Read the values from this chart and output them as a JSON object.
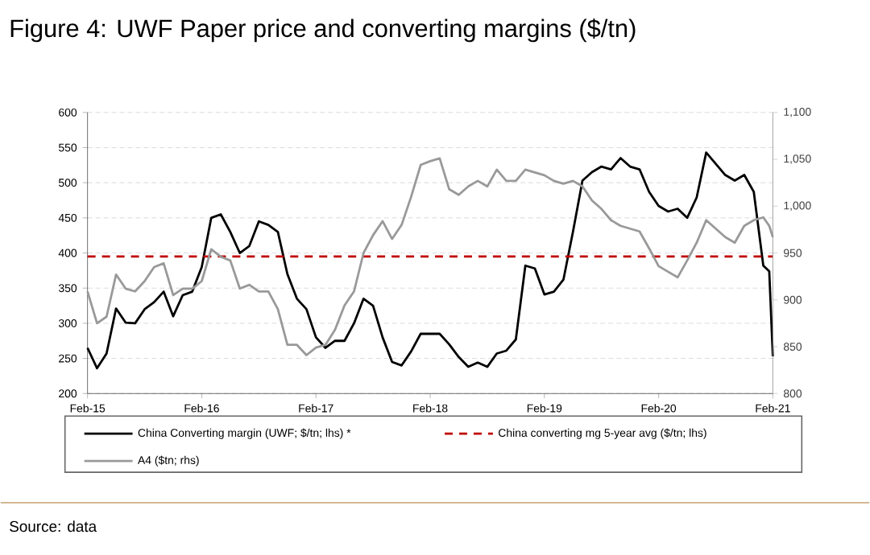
{
  "chart_data": {
    "type": "line",
    "title": "Figure 4: UWF Paper price and converting margins ($/tn)",
    "annotations": [
      "Source: data"
    ],
    "xlim": [
      "2015-02-01",
      "2021-02-01"
    ],
    "xticks": [
      {
        "value": "2015-02-01",
        "label": "Feb-15"
      },
      {
        "value": "2016-02-01",
        "label": "Feb-16"
      },
      {
        "value": "2017-02-01",
        "label": "Feb-17"
      },
      {
        "value": "2018-02-01",
        "label": "Feb-18"
      },
      {
        "value": "2019-02-01",
        "label": "Feb-19"
      },
      {
        "value": "2020-02-01",
        "label": "Feb-20"
      },
      {
        "value": "2021-02-01",
        "label": "Feb-21"
      }
    ],
    "ylim": [
      200,
      600
    ],
    "yticks": [
      200,
      250,
      300,
      350,
      400,
      450,
      500,
      550,
      600
    ],
    "y2lim": [
      800,
      1100
    ],
    "y2ticks": [
      800,
      850,
      900,
      950,
      {
        "value": 1000,
        "label": "1,000"
      },
      {
        "value": 1050,
        "label": "1,050"
      },
      {
        "value": 1100,
        "label": "1,100"
      }
    ],
    "grid": "y",
    "legend": "bottom",
    "ref_lines": [
      {
        "axis": "y",
        "value": 395,
        "label": "China converting mg 5-year avg ($/tn; lhs)",
        "color": "#c00000",
        "line_style": "dashed"
      }
    ],
    "series": [
      {
        "name": "China Converting margin (UWF; $/tn; lhs) *",
        "color": "#000000",
        "axis": "y",
        "x": [
          "2015-02-01",
          "2015-03-01",
          "2015-04-01",
          "2015-05-01",
          "2015-06-01",
          "2015-07-01",
          "2015-08-01",
          "2015-09-01",
          "2015-10-01",
          "2015-11-01",
          "2015-12-01",
          "2016-01-01",
          "2016-02-01",
          "2016-03-01",
          "2016-04-01",
          "2016-05-01",
          "2016-06-01",
          "2016-07-01",
          "2016-08-01",
          "2016-09-01",
          "2016-10-01",
          "2016-11-01",
          "2016-12-01",
          "2017-01-01",
          "2017-02-01",
          "2017-03-01",
          "2017-04-01",
          "2017-05-01",
          "2017-06-01",
          "2017-07-01",
          "2017-08-01",
          "2017-09-01",
          "2017-10-01",
          "2017-11-01",
          "2017-12-01",
          "2018-01-01",
          "2018-02-01",
          "2018-03-01",
          "2018-04-01",
          "2018-05-01",
          "2018-06-01",
          "2018-07-01",
          "2018-08-01",
          "2018-09-01",
          "2018-10-01",
          "2018-11-01",
          "2018-12-01",
          "2019-01-01",
          "2019-02-01",
          "2019-03-01",
          "2019-04-01",
          "2019-05-01",
          "2019-06-01",
          "2019-07-01",
          "2019-08-01",
          "2019-09-01",
          "2019-10-01",
          "2019-11-01",
          "2019-12-01",
          "2020-01-01",
          "2020-02-01",
          "2020-03-01",
          "2020-04-01",
          "2020-05-01",
          "2020-06-01",
          "2020-07-01",
          "2020-08-01",
          "2020-09-01",
          "2020-10-01",
          "2020-11-01",
          "2020-12-01",
          "2021-01-01",
          "2021-01-20",
          "2021-02-01"
        ],
        "values": [
          265,
          236,
          257,
          321,
          301,
          300,
          320,
          330,
          345,
          310,
          340,
          345,
          380,
          450,
          455,
          430,
          400,
          410,
          445,
          440,
          430,
          370,
          335,
          320,
          280,
          265,
          275,
          275,
          300,
          335,
          325,
          280,
          245,
          240,
          260,
          285,
          285,
          285,
          270,
          252,
          238,
          244,
          238,
          257,
          261,
          277,
          382,
          378,
          341,
          345,
          362,
          430,
          503,
          515,
          523,
          519,
          535,
          523,
          519,
          487,
          467,
          459,
          463,
          450,
          479,
          543,
          527,
          511,
          503,
          511,
          487,
          382,
          374,
          253
        ]
      },
      {
        "name": "A4 ($tn; rhs)",
        "color": "#999999",
        "axis": "y2",
        "x": [
          "2015-02-01",
          "2015-03-01",
          "2015-04-01",
          "2015-05-01",
          "2015-06-01",
          "2015-07-01",
          "2015-08-01",
          "2015-09-01",
          "2015-10-01",
          "2015-11-01",
          "2015-12-01",
          "2016-01-01",
          "2016-02-01",
          "2016-03-01",
          "2016-04-01",
          "2016-05-01",
          "2016-06-01",
          "2016-07-01",
          "2016-08-01",
          "2016-09-01",
          "2016-10-01",
          "2016-11-01",
          "2016-12-01",
          "2017-01-01",
          "2017-02-01",
          "2017-03-01",
          "2017-04-01",
          "2017-05-01",
          "2017-06-01",
          "2017-07-01",
          "2017-08-01",
          "2017-09-01",
          "2017-10-01",
          "2017-11-01",
          "2017-12-01",
          "2018-01-01",
          "2018-02-01",
          "2018-03-01",
          "2018-04-01",
          "2018-05-01",
          "2018-06-01",
          "2018-07-01",
          "2018-08-01",
          "2018-09-01",
          "2018-10-01",
          "2018-11-01",
          "2018-12-01",
          "2019-01-01",
          "2019-02-01",
          "2019-03-01",
          "2019-04-01",
          "2019-05-01",
          "2019-06-01",
          "2019-07-01",
          "2019-08-01",
          "2019-09-01",
          "2019-10-01",
          "2019-11-01",
          "2019-12-01",
          "2020-01-01",
          "2020-02-01",
          "2020-03-01",
          "2020-04-01",
          "2020-05-01",
          "2020-06-01",
          "2020-07-01",
          "2020-08-01",
          "2020-09-01",
          "2020-10-01",
          "2020-11-01",
          "2020-12-01",
          "2021-01-01",
          "2021-01-20",
          "2021-02-01"
        ],
        "values": [
          909,
          875,
          882,
          927,
          912,
          909,
          920,
          935,
          939,
          905,
          912,
          912,
          920,
          954,
          946,
          942,
          912,
          916,
          909,
          909,
          890,
          852,
          852,
          841,
          849,
          852,
          868,
          894,
          909,
          950,
          969,
          984,
          965,
          980,
          1010,
          1044,
          1048,
          1051,
          1018,
          1012,
          1021,
          1027,
          1021,
          1039,
          1027,
          1027,
          1039,
          1036,
          1033,
          1027,
          1024,
          1027,
          1021,
          1006,
          997,
          985,
          979,
          976,
          973,
          955,
          936,
          930,
          924,
          942,
          961,
          985,
          976,
          967,
          961,
          979,
          985,
          988,
          979,
          967
        ]
      }
    ]
  }
}
